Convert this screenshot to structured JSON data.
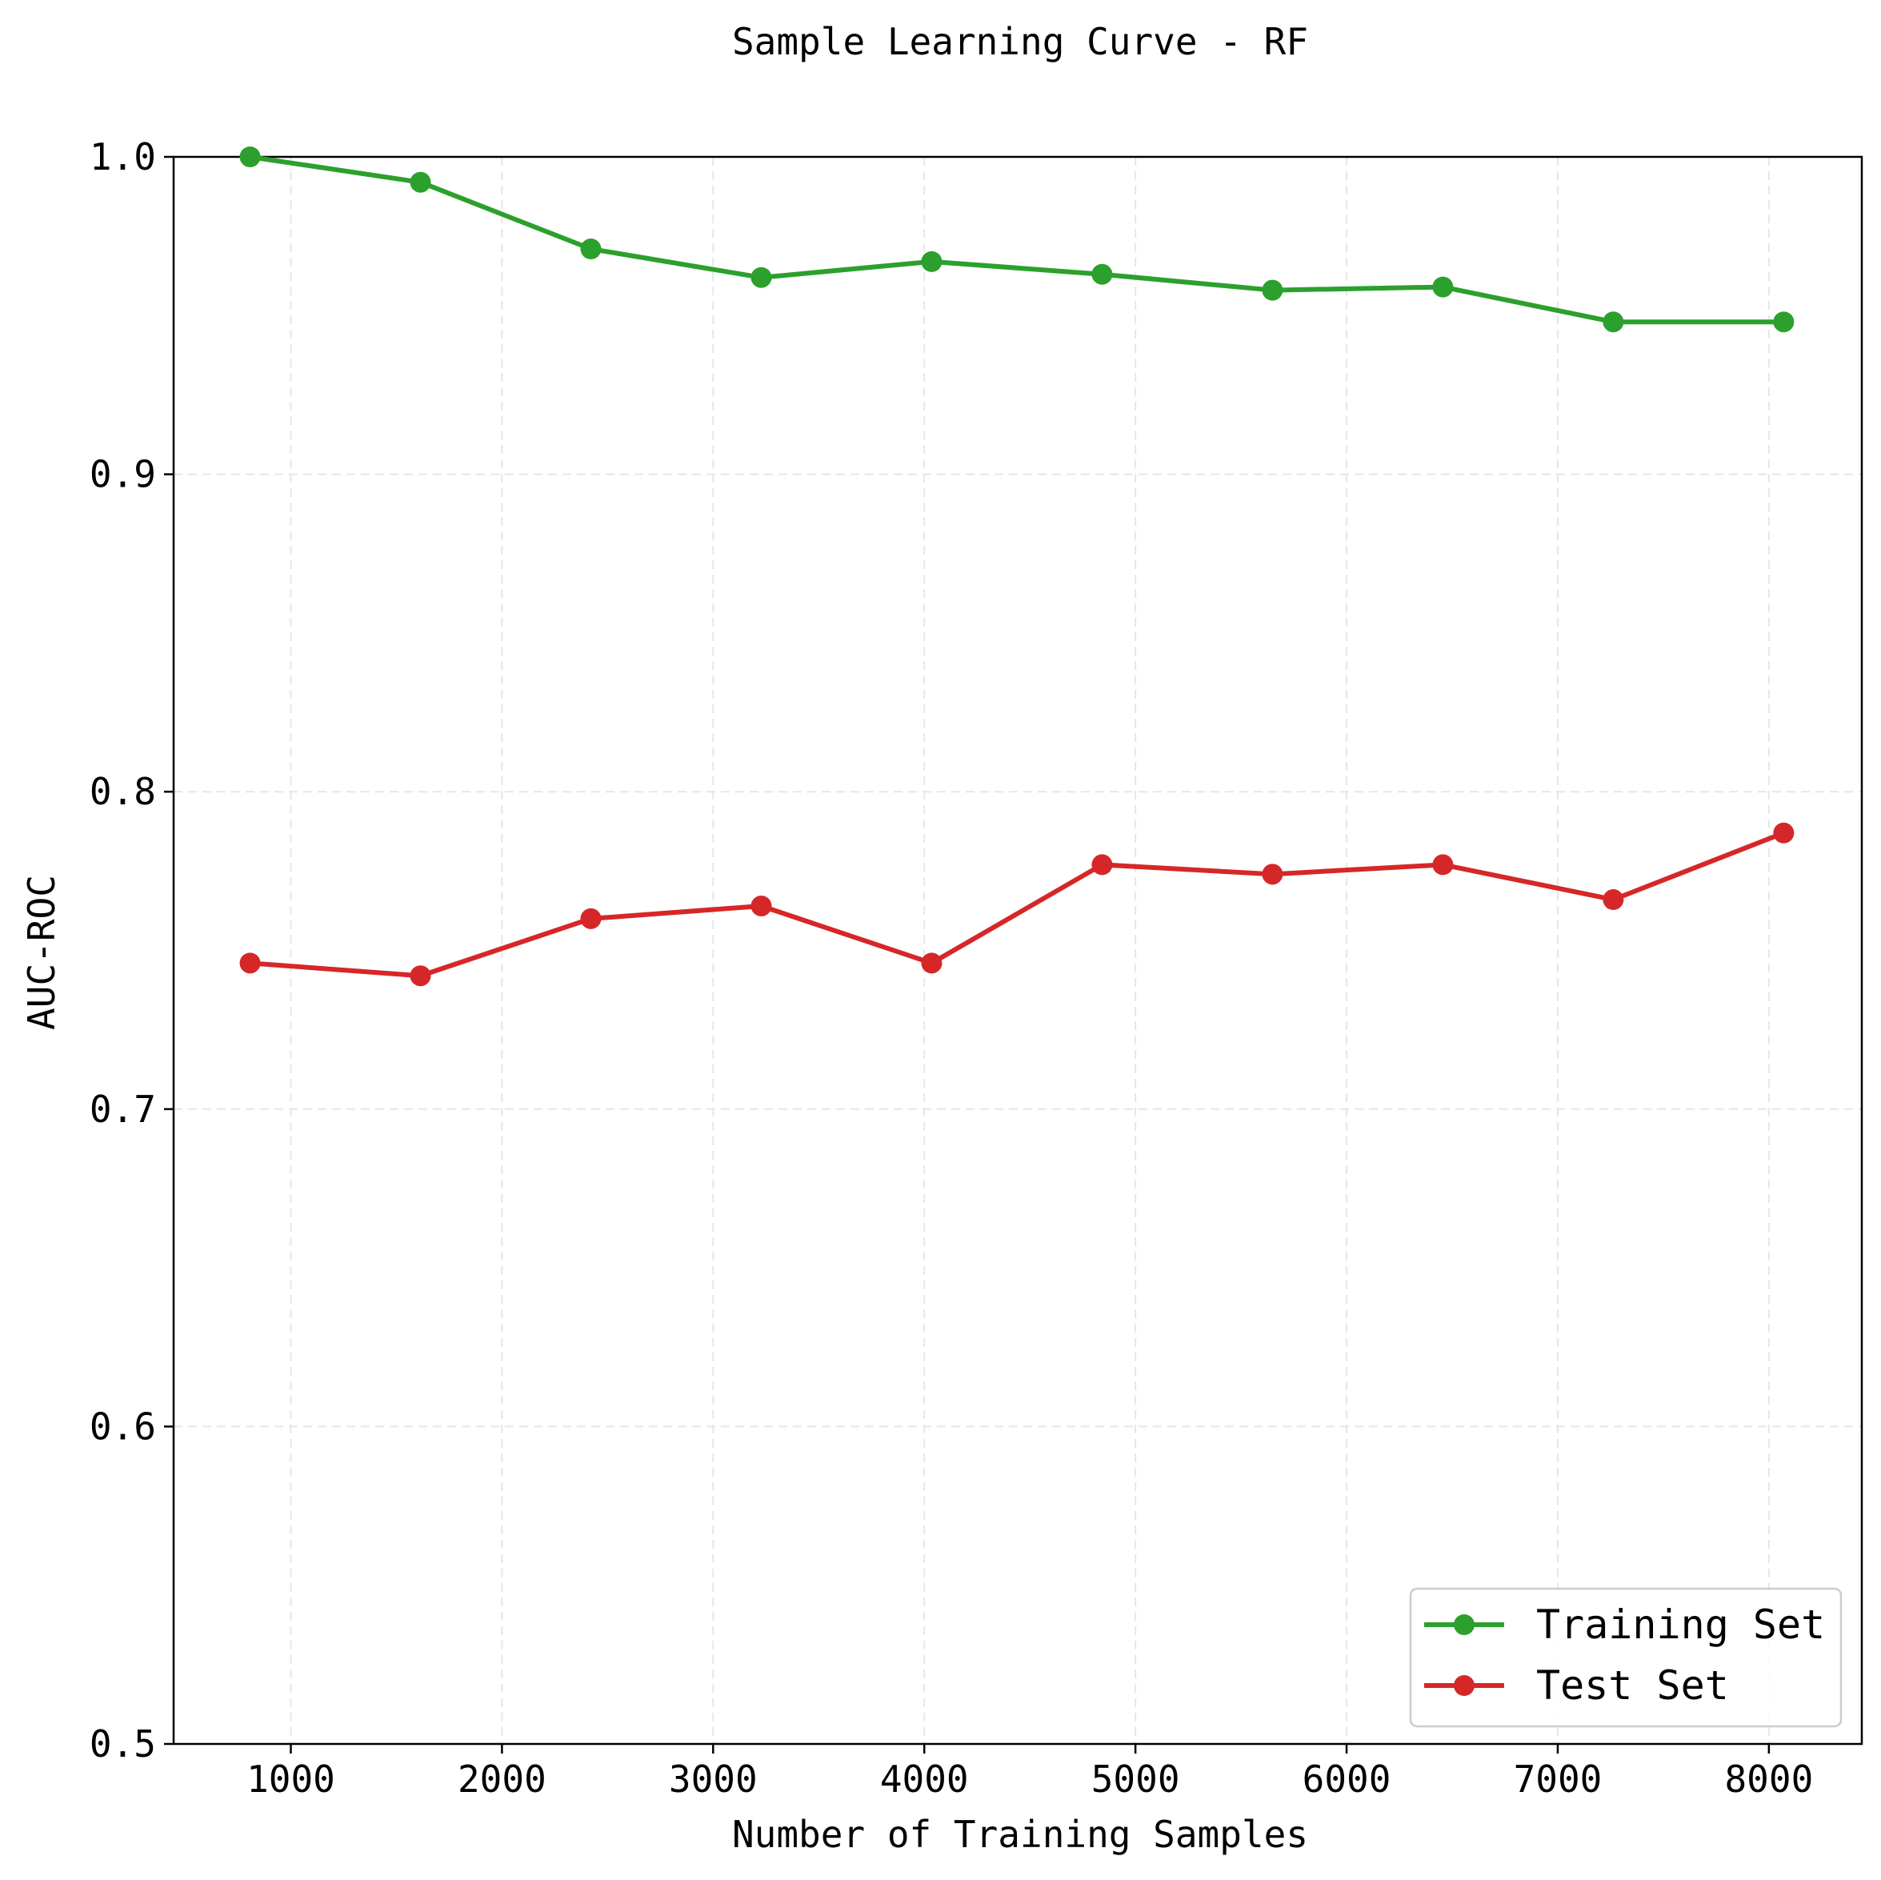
{
  "chart_data": {
    "type": "line",
    "title": "Sample Learning Curve - RF",
    "xlabel": "Number of Training Samples",
    "ylabel": "AUC-ROC",
    "xlim": [
      445,
      8440
    ],
    "ylim": [
      0.5,
      1.0
    ],
    "xticks": [
      1000,
      2000,
      3000,
      4000,
      5000,
      6000,
      7000,
      8000
    ],
    "yticks": [
      0.5,
      0.6,
      0.7,
      0.8,
      0.9,
      1.0
    ],
    "xtick_labels": [
      "1000",
      "2000",
      "3000",
      "4000",
      "5000",
      "6000",
      "7000",
      "8000"
    ],
    "ytick_labels": [
      "0.5",
      "0.6",
      "0.7",
      "0.8",
      "0.9",
      "1.0"
    ],
    "grid": true,
    "legend_position": "bottom-right",
    "x": [
      807,
      1614,
      2421,
      3228,
      4035,
      4842,
      5649,
      6456,
      7263,
      8070
    ],
    "series": [
      {
        "name": "Training Set",
        "color": "#2ca02c",
        "values": [
          1.0,
          0.992,
          0.971,
          0.962,
          0.967,
          0.963,
          0.958,
          0.959,
          0.948,
          0.948
        ]
      },
      {
        "name": "Test Set",
        "color": "#d62728",
        "values": [
          0.746,
          0.742,
          0.76,
          0.764,
          0.746,
          0.777,
          0.774,
          0.777,
          0.766,
          0.787
        ]
      }
    ]
  }
}
